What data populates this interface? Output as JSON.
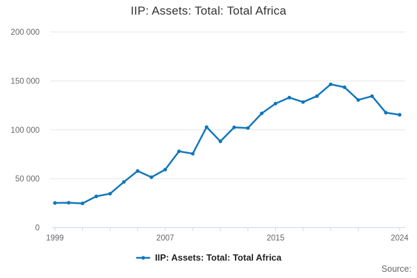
{
  "header": {
    "title": "IIP: Assets: Total: Total Africa"
  },
  "footer": {
    "source_label": "Source:"
  },
  "legend": {
    "items": [
      {
        "label": "IIP: Assets: Total: Total Africa",
        "color": "#1076bc",
        "marker": "line-with-dot"
      }
    ]
  },
  "colors": {
    "line": "#1076bc",
    "grid": "#e6e6e6",
    "axis": "#ccd6eb",
    "title_text": "#333333",
    "tick_text": "#666666"
  },
  "chart_data": {
    "type": "line",
    "title": "IIP: Assets: Total: Total Africa",
    "xlabel": "",
    "ylabel": "",
    "x": [
      1999,
      2000,
      2001,
      2002,
      2003,
      2004,
      2005,
      2006,
      2007,
      2008,
      2009,
      2010,
      2011,
      2012,
      2013,
      2014,
      2015,
      2016,
      2017,
      2018,
      2019,
      2020,
      2021,
      2022,
      2023,
      2024
    ],
    "series": [
      {
        "name": "IIP: Assets: Total: Total Africa",
        "color": "#1076bc",
        "values": [
          25200,
          25400,
          24800,
          32000,
          34700,
          46700,
          57900,
          51500,
          59300,
          78000,
          75600,
          102800,
          88200,
          102500,
          101800,
          116800,
          126800,
          132900,
          128400,
          134400,
          146500,
          143500,
          130500,
          134400,
          117500,
          115400
        ]
      }
    ],
    "ylim": [
      0,
      200000
    ],
    "yticks": [
      0,
      50000,
      100000,
      150000,
      200000
    ],
    "ytick_labels": [
      "0",
      "50 000",
      "100 000",
      "150 000",
      "200 000"
    ],
    "xticks_marked": [
      1999,
      2001,
      2003,
      2005,
      2007,
      2009,
      2011,
      2013,
      2015,
      2017,
      2019,
      2021,
      2024
    ],
    "xtick_labels": [
      {
        "x": 1999,
        "label": "1999"
      },
      {
        "x": 2007,
        "label": "2007"
      },
      {
        "x": 2015,
        "label": "2015"
      },
      {
        "x": 2024,
        "label": "2024"
      }
    ],
    "grid": "horizontal",
    "legend_position": "bottom"
  }
}
